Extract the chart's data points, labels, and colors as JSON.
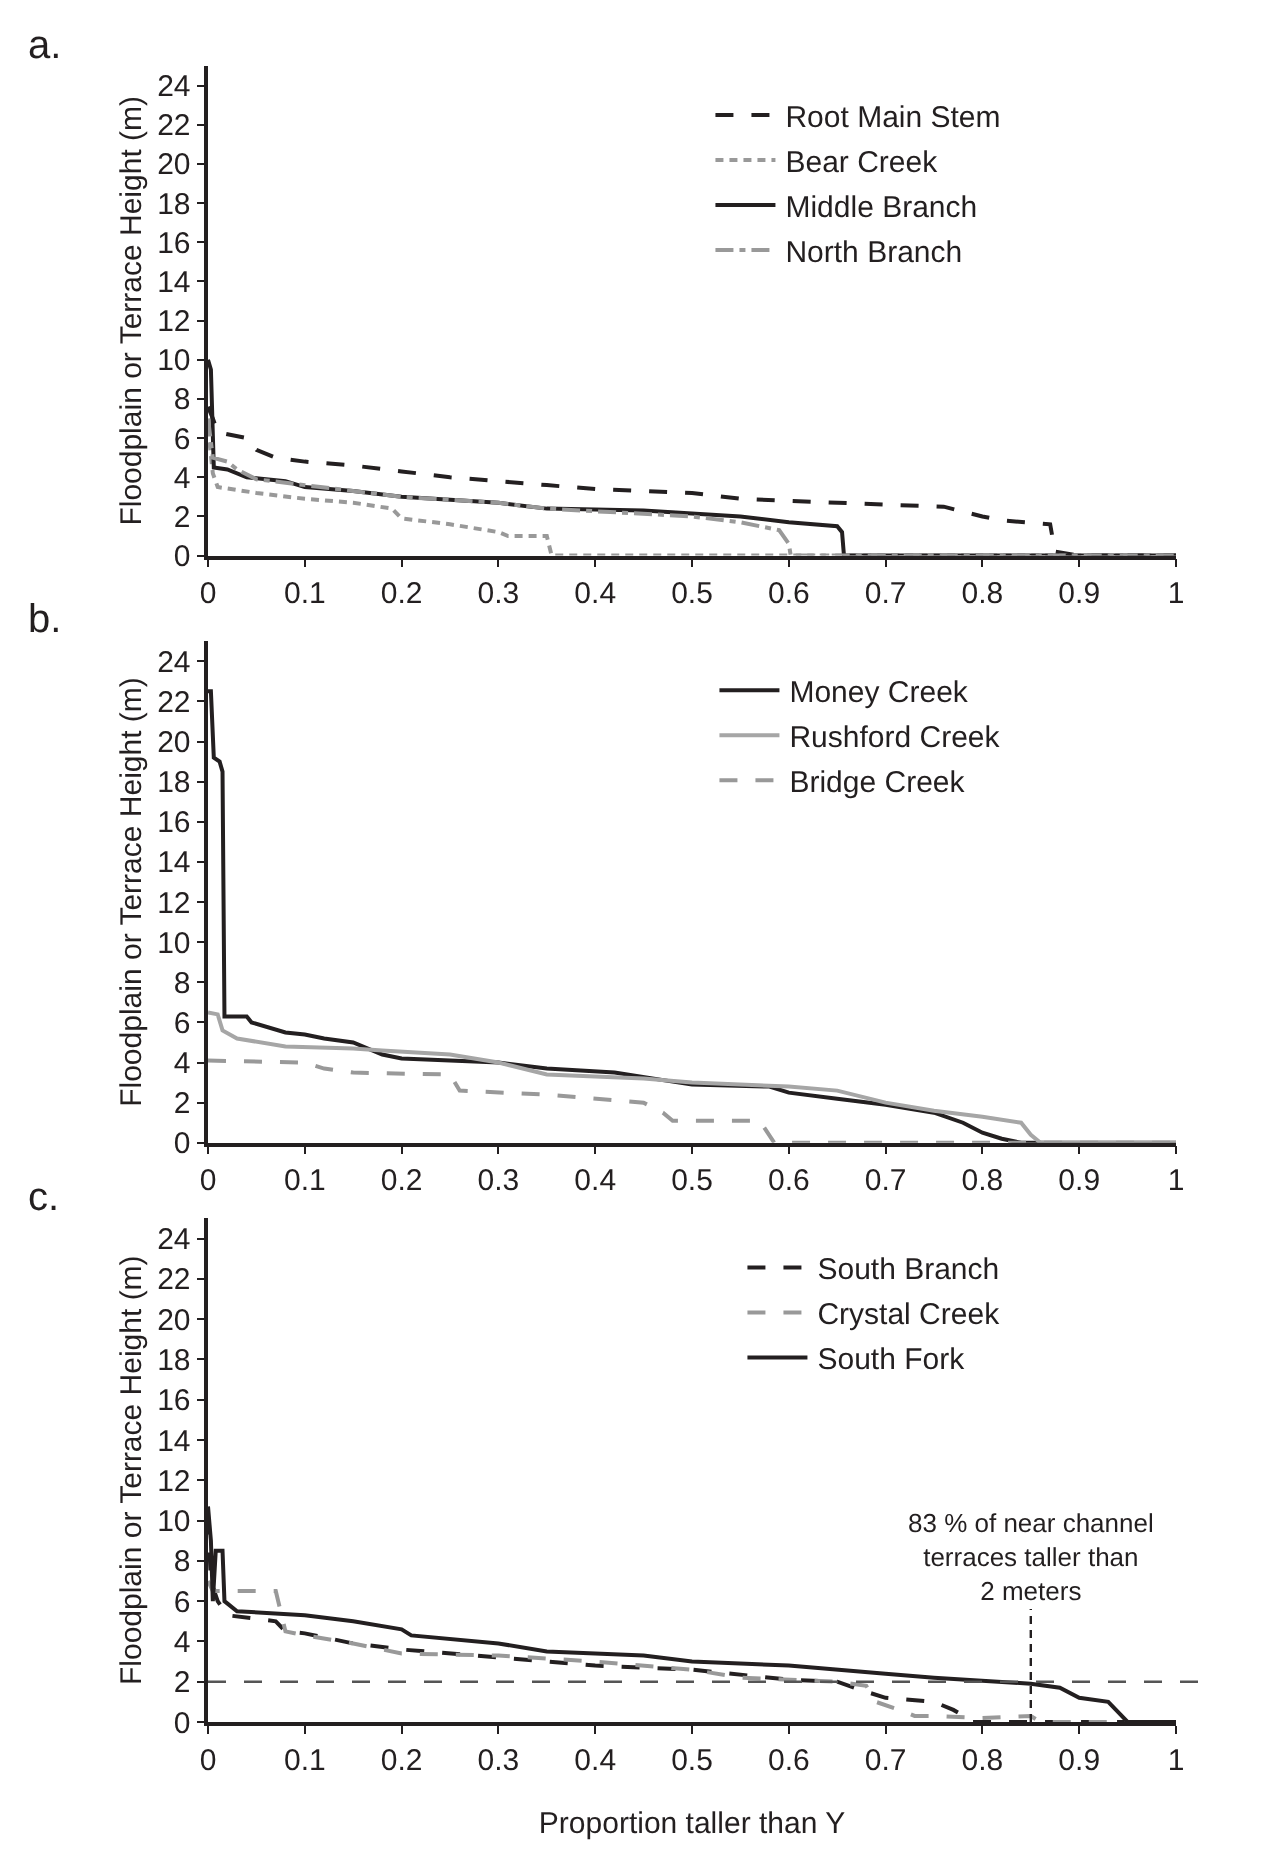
{
  "chart_data": [
    {
      "type": "line",
      "title": "a.",
      "ylabel": "Floodplain or Terrace Height (m)",
      "xlim": [
        0,
        1
      ],
      "xticks": [
        0,
        0.1,
        0.2,
        0.3,
        0.4,
        0.5,
        0.6,
        0.7,
        0.8,
        0.9,
        1
      ],
      "ylim": [
        0,
        25
      ],
      "yticks": [
        0,
        2,
        4,
        6,
        8,
        10,
        12,
        14,
        16,
        18,
        20,
        22,
        24
      ],
      "grid": false,
      "legend": "top right",
      "series": [
        {
          "name": "Root Main Stem",
          "color": "#231f20",
          "line_style": "dashed",
          "x": [
            0,
            0.005,
            0.01,
            0.04,
            0.05,
            0.07,
            0.1,
            0.15,
            0.2,
            0.25,
            0.3,
            0.35,
            0.4,
            0.5,
            0.55,
            0.6,
            0.7,
            0.76,
            0.8,
            0.82,
            0.87,
            0.875,
            0.9,
            1
          ],
          "values": [
            7.6,
            7.0,
            6.3,
            6.0,
            5.4,
            5.0,
            4.8,
            4.6,
            4.3,
            4.0,
            3.8,
            3.6,
            3.4,
            3.2,
            2.9,
            2.8,
            2.6,
            2.5,
            2.0,
            1.8,
            1.6,
            0.2,
            0,
            0
          ]
        },
        {
          "name": "Bear Creek",
          "color": "#999999",
          "line_style": "dotted",
          "x": [
            0,
            0.005,
            0.01,
            0.05,
            0.1,
            0.15,
            0.19,
            0.2,
            0.25,
            0.3,
            0.31,
            0.35,
            0.355,
            1
          ],
          "values": [
            6.5,
            4.2,
            3.5,
            3.2,
            2.9,
            2.7,
            2.4,
            1.9,
            1.6,
            1.2,
            1.0,
            1.0,
            0,
            0
          ]
        },
        {
          "name": "Middle Branch",
          "color": "#231f20",
          "line_style": "solid",
          "x": [
            0,
            0.003,
            0.006,
            0.02,
            0.04,
            0.08,
            0.1,
            0.15,
            0.2,
            0.3,
            0.35,
            0.45,
            0.55,
            0.6,
            0.65,
            0.655,
            0.657,
            1
          ],
          "values": [
            10,
            9.5,
            4.5,
            4.4,
            4.0,
            3.8,
            3.5,
            3.3,
            3.0,
            2.7,
            2.4,
            2.3,
            2.0,
            1.7,
            1.5,
            1.2,
            0,
            0
          ]
        },
        {
          "name": "North Branch",
          "color": "#999999",
          "line_style": "dashdot",
          "x": [
            0,
            0.005,
            0.02,
            0.03,
            0.05,
            0.1,
            0.2,
            0.3,
            0.35,
            0.5,
            0.55,
            0.59,
            0.6,
            0.602,
            1
          ],
          "values": [
            7.0,
            5.0,
            4.8,
            4.4,
            3.9,
            3.6,
            3.0,
            2.7,
            2.4,
            2.0,
            1.7,
            1.3,
            0.6,
            0,
            0
          ]
        }
      ]
    },
    {
      "type": "line",
      "title": "b.",
      "ylabel": "Floodplain or Terrace Height (m)",
      "xlim": [
        0,
        1
      ],
      "xticks": [
        0,
        0.1,
        0.2,
        0.3,
        0.4,
        0.5,
        0.6,
        0.7,
        0.8,
        0.9,
        1
      ],
      "ylim": [
        0,
        25
      ],
      "yticks": [
        0,
        2,
        4,
        6,
        8,
        10,
        12,
        14,
        16,
        18,
        20,
        22,
        24
      ],
      "grid": false,
      "legend": "top right",
      "series": [
        {
          "name": "Money Creek",
          "color": "#231f20",
          "line_style": "solid",
          "x": [
            0,
            0.003,
            0.006,
            0.012,
            0.015,
            0.017,
            0.04,
            0.045,
            0.08,
            0.1,
            0.12,
            0.15,
            0.18,
            0.2,
            0.3,
            0.35,
            0.42,
            0.5,
            0.58,
            0.6,
            0.65,
            0.7,
            0.75,
            0.78,
            0.8,
            0.82,
            0.84,
            1
          ],
          "values": [
            22.5,
            22.5,
            19.2,
            19.0,
            18.5,
            6.3,
            6.3,
            6.0,
            5.5,
            5.4,
            5.2,
            5.0,
            4.4,
            4.2,
            4.0,
            3.7,
            3.5,
            2.9,
            2.8,
            2.5,
            2.2,
            1.9,
            1.5,
            1.0,
            0.5,
            0.2,
            0,
            0
          ]
        },
        {
          "name": "Rushford Creek",
          "color": "#a6a6a6",
          "line_style": "solid",
          "x": [
            0,
            0.01,
            0.015,
            0.03,
            0.08,
            0.15,
            0.18,
            0.25,
            0.3,
            0.35,
            0.45,
            0.5,
            0.6,
            0.65,
            0.7,
            0.75,
            0.8,
            0.84,
            0.85,
            0.86,
            1
          ],
          "values": [
            6.5,
            6.4,
            5.6,
            5.2,
            4.8,
            4.7,
            4.6,
            4.4,
            4.0,
            3.4,
            3.2,
            3.0,
            2.8,
            2.6,
            2.0,
            1.6,
            1.3,
            1.0,
            0.4,
            0,
            0
          ]
        },
        {
          "name": "Bridge Creek",
          "color": "#999999",
          "line_style": "dashed",
          "x": [
            0,
            0.1,
            0.12,
            0.15,
            0.25,
            0.26,
            0.35,
            0.45,
            0.47,
            0.48,
            0.57,
            0.585,
            1
          ],
          "values": [
            4.1,
            4.0,
            3.7,
            3.5,
            3.4,
            2.6,
            2.4,
            2.0,
            1.5,
            1.1,
            1.1,
            0,
            0
          ]
        }
      ]
    },
    {
      "type": "line",
      "title": "c.",
      "xlabel": "Proportion taller than Y",
      "ylabel": "Floodplain or Terrace Height (m)",
      "xlim": [
        0,
        1
      ],
      "xticks": [
        0,
        0.1,
        0.2,
        0.3,
        0.4,
        0.5,
        0.6,
        0.7,
        0.8,
        0.9,
        1
      ],
      "ylim": [
        0,
        25
      ],
      "yticks": [
        0,
        2,
        4,
        6,
        8,
        10,
        12,
        14,
        16,
        18,
        20,
        22,
        24
      ],
      "grid": false,
      "legend": "top right",
      "ref_lines": [
        {
          "axis": "y",
          "value": 2,
          "color": "#555555",
          "line_style": "dashed"
        },
        {
          "axis": "x",
          "value": 0.85,
          "label": "83 % of near channel terraces taller than 2 meters",
          "color": "#231f20",
          "line_style": "dotted"
        }
      ],
      "series": [
        {
          "name": "South Branch",
          "color": "#231f20",
          "line_style": "dashed",
          "x": [
            0,
            0.003,
            0.01,
            0.02,
            0.07,
            0.08,
            0.1,
            0.15,
            0.2,
            0.3,
            0.4,
            0.5,
            0.6,
            0.65,
            0.68,
            0.7,
            0.75,
            0.77,
            0.785,
            0.79,
            1
          ],
          "values": [
            10.2,
            7.0,
            6.0,
            5.3,
            5.0,
            4.5,
            4.4,
            3.9,
            3.6,
            3.2,
            2.8,
            2.6,
            2.1,
            2.0,
            1.5,
            1.2,
            1.0,
            0.6,
            0.2,
            0,
            0
          ]
        },
        {
          "name": "Crystal Creek",
          "color": "#999999",
          "line_style": "dashed",
          "x": [
            0,
            0.005,
            0.07,
            0.08,
            0.1,
            0.15,
            0.2,
            0.3,
            0.4,
            0.5,
            0.55,
            0.65,
            0.68,
            0.69,
            0.72,
            0.73,
            0.75,
            0.8,
            0.85,
            0.86,
            1
          ],
          "values": [
            7.0,
            6.5,
            6.5,
            4.5,
            4.3,
            3.9,
            3.4,
            3.3,
            3.0,
            2.6,
            2.2,
            2.0,
            1.8,
            1.0,
            0.5,
            0.3,
            0.3,
            0.2,
            0.3,
            0,
            0
          ]
        },
        {
          "name": "South Fork",
          "color": "#231f20",
          "line_style": "solid",
          "x": [
            0,
            0.003,
            0.005,
            0.008,
            0.015,
            0.017,
            0.03,
            0.1,
            0.15,
            0.2,
            0.21,
            0.3,
            0.35,
            0.45,
            0.5,
            0.6,
            0.7,
            0.75,
            0.85,
            0.88,
            0.9,
            0.93,
            0.94,
            0.95,
            1
          ],
          "values": [
            10.7,
            9.0,
            6.0,
            8.5,
            8.5,
            6.0,
            5.5,
            5.3,
            5.0,
            4.6,
            4.3,
            3.9,
            3.5,
            3.3,
            3.0,
            2.8,
            2.4,
            2.2,
            1.9,
            1.7,
            1.2,
            1.0,
            0.5,
            0,
            0
          ]
        }
      ]
    }
  ]
}
